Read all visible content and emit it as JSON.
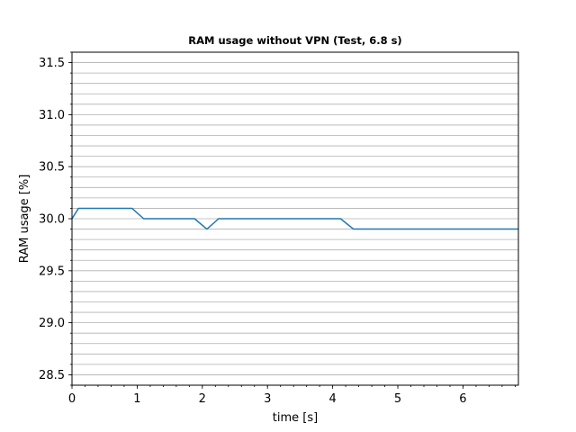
{
  "chart_data": {
    "type": "line",
    "title": "RAM usage without VPN (Test, 6.8 s)",
    "xlabel": "time [s]",
    "ylabel": "RAM usage [%]",
    "xlim": [
      0,
      6.85
    ],
    "ylim": [
      28.4,
      31.6
    ],
    "xticks": [
      0,
      1,
      2,
      3,
      4,
      5,
      6
    ],
    "xtick_labels": [
      "0",
      "1",
      "2",
      "3",
      "4",
      "5",
      "6"
    ],
    "yticks": [
      28.5,
      29.0,
      29.5,
      30.0,
      30.5,
      31.0,
      31.5
    ],
    "ytick_labels": [
      "28.5",
      "29.0",
      "29.5",
      "30.0",
      "30.5",
      "31.0",
      "31.5"
    ],
    "grid": true,
    "line_color": "#1f77b4",
    "series": [
      {
        "x": [
          0,
          0.1,
          0.92,
          1.1,
          1.88,
          2.07,
          2.25,
          4.12,
          4.32,
          6.85
        ],
        "y": [
          30.0,
          30.1,
          30.1,
          30.0,
          30.0,
          29.9,
          30.0,
          30.0,
          29.9,
          29.9
        ]
      }
    ]
  }
}
